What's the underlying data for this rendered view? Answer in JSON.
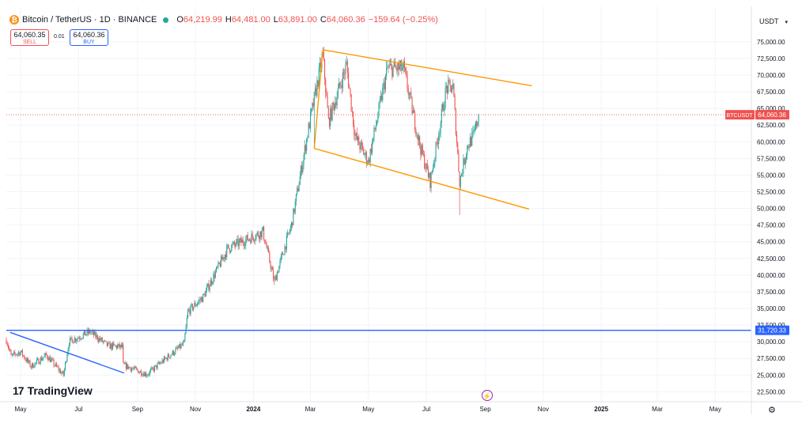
{
  "header": {
    "symbol_title": "Bitcoin / TetherUS · 1D · BINANCE",
    "open_label": "O",
    "open_value": "64,219.99",
    "high_label": "H",
    "high_value": "64,481.00",
    "low_label": "L",
    "low_value": "63,891.00",
    "close_label": "C",
    "close_value": "64,060.36",
    "change": "−159.64 (−0.25%)"
  },
  "trade": {
    "sell_price": "64,060.35",
    "sell_label": "SELL",
    "spread": "0.01",
    "buy_price": "64,060.36",
    "buy_label": "BUY"
  },
  "currency": "USDT",
  "branding": "TradingView",
  "colors": {
    "up": "#26a69a",
    "down": "#ef5350",
    "channel": "#ff9800",
    "support": "#2962ff",
    "price_line": "#ef5350"
  },
  "chart_data": {
    "type": "candlestick",
    "symbol_tag": "BTCUSDT",
    "last_price": 64060.36,
    "last_price_label": "64,060.36",
    "ylim": [
      21000,
      77000
    ],
    "y_ticks": [
      22500,
      25000,
      27500,
      30000,
      32500,
      35000,
      37500,
      40000,
      42500,
      45000,
      47500,
      50000,
      52500,
      55000,
      57500,
      60000,
      62500,
      65000,
      67500,
      70000,
      72500,
      75000
    ],
    "y_tick_labels": [
      "22,500.00",
      "25,000.00",
      "27,500.00",
      "30,000.00",
      "32,500.00",
      "35,000.00",
      "37,500.00",
      "40,000.00",
      "42,500.00",
      "45,000.00",
      "47,500.00",
      "50,000.00",
      "52,500.00",
      "55,000.00",
      "57,500.00",
      "60,000.00",
      "62,500.00",
      "65,000.00",
      "67,500.00",
      "70,000.00",
      "72,500.00",
      "75,000.00"
    ],
    "x_range": [
      "2023-04-16",
      "2025-06-08"
    ],
    "x_ticks": [
      {
        "date": "2023-05-01",
        "label": "May"
      },
      {
        "date": "2023-07-01",
        "label": "Jul"
      },
      {
        "date": "2023-09-01",
        "label": "Sep"
      },
      {
        "date": "2023-11-01",
        "label": "Nov"
      },
      {
        "date": "2024-01-01",
        "label": "2024"
      },
      {
        "date": "2024-03-01",
        "label": "Mar"
      },
      {
        "date": "2024-05-01",
        "label": "May"
      },
      {
        "date": "2024-07-01",
        "label": "Jul"
      },
      {
        "date": "2024-09-01",
        "label": "Sep"
      },
      {
        "date": "2024-11-01",
        "label": "Nov"
      },
      {
        "date": "2025-01-01",
        "label": "2025"
      },
      {
        "date": "2025-03-01",
        "label": "Mar"
      },
      {
        "date": "2025-05-01",
        "label": "May"
      }
    ],
    "horizontal_line": {
      "value": 31720.33,
      "label": "31,720.33"
    },
    "trendlines": [
      {
        "name": "downtrend",
        "color": "support",
        "points": [
          [
            "2023-04-20",
            31400
          ],
          [
            "2023-08-18",
            25300
          ]
        ]
      },
      {
        "name": "channel-upper",
        "color": "channel",
        "points": [
          [
            "2024-03-14",
            73800
          ],
          [
            "2024-10-20",
            68400
          ]
        ]
      },
      {
        "name": "channel-lower",
        "color": "channel",
        "points": [
          [
            "2024-03-05",
            59000
          ],
          [
            "2024-10-17",
            49900
          ]
        ]
      },
      {
        "name": "channel-connector",
        "color": "channel",
        "points": [
          [
            "2024-03-05",
            59000
          ],
          [
            "2024-03-14",
            73800
          ]
        ]
      }
    ],
    "anchors": [
      [
        "2023-04-16",
        30300
      ],
      [
        "2023-04-21",
        27800
      ],
      [
        "2023-05-01",
        28500
      ],
      [
        "2023-05-12",
        26300
      ],
      [
        "2023-05-28",
        28000
      ],
      [
        "2023-06-15",
        25000
      ],
      [
        "2023-06-21",
        30000
      ],
      [
        "2023-07-13",
        31500
      ],
      [
        "2023-08-01",
        29400
      ],
      [
        "2023-08-16",
        29200
      ],
      [
        "2023-08-17",
        26500
      ],
      [
        "2023-09-11",
        25100
      ],
      [
        "2023-10-01",
        27500
      ],
      [
        "2023-10-20",
        29700
      ],
      [
        "2023-10-24",
        34500
      ],
      [
        "2023-11-09",
        36700
      ],
      [
        "2023-12-05",
        44000
      ],
      [
        "2024-01-11",
        46500
      ],
      [
        "2024-01-23",
        39000
      ],
      [
        "2024-02-10",
        47500
      ],
      [
        "2024-02-28",
        62000
      ],
      [
        "2024-03-14",
        73000
      ],
      [
        "2024-03-20",
        63000
      ],
      [
        "2024-04-08",
        71500
      ],
      [
        "2024-04-17",
        60800
      ],
      [
        "2024-05-01",
        57000
      ],
      [
        "2024-05-21",
        71000
      ],
      [
        "2024-06-07",
        71000
      ],
      [
        "2024-06-24",
        59500
      ],
      [
        "2024-07-05",
        54000
      ],
      [
        "2024-07-22",
        68000
      ],
      [
        "2024-07-29",
        68200
      ],
      [
        "2024-08-05",
        54000
      ],
      [
        "2024-08-13",
        59300
      ],
      [
        "2024-08-20",
        61000
      ],
      [
        "2024-08-25",
        64060
      ]
    ],
    "notable_wicks": [
      [
        "2024-08-05",
        49000
      ],
      [
        "2024-03-05",
        59000
      ],
      [
        "2024-01-23",
        38500
      ]
    ]
  }
}
